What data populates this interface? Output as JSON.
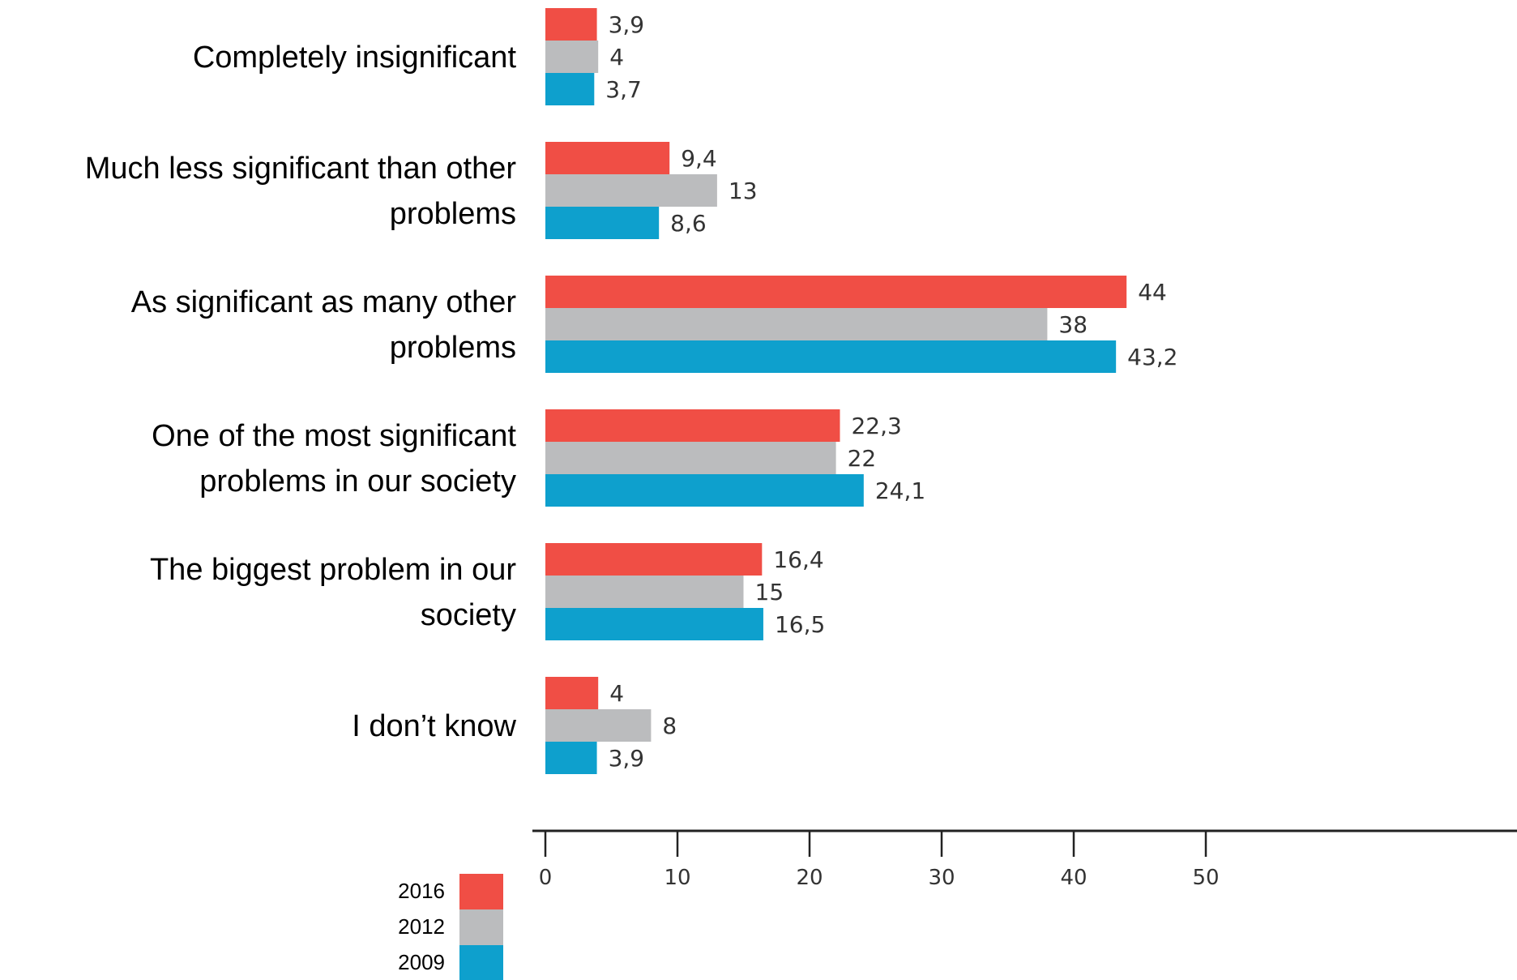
{
  "chart_data": {
    "type": "bar",
    "orientation": "horizontal",
    "categories": [
      [
        "Completely insignificant"
      ],
      [
        "Much less significant than other",
        "problems"
      ],
      [
        "As significant as many other",
        "problems"
      ],
      [
        "One of the most significant",
        "problems in our society"
      ],
      [
        "The biggest problem in our",
        "society"
      ],
      [
        "I don’t know"
      ]
    ],
    "series": [
      {
        "name": "2016",
        "color": "#f04e45",
        "values": [
          3.9,
          9.4,
          44,
          22.3,
          16.4,
          4
        ],
        "labels": [
          "3,9",
          "9,4",
          "44",
          "22,3",
          "16,4",
          "4"
        ]
      },
      {
        "name": "2012",
        "color": "#bbbcbe",
        "values": [
          4,
          13,
          38,
          22,
          15,
          8
        ],
        "labels": [
          "4",
          "13",
          "38",
          "22",
          "15",
          "8"
        ]
      },
      {
        "name": "2009",
        "color": "#0ea0cd",
        "values": [
          3.7,
          8.6,
          43.2,
          24.1,
          16.5,
          3.9
        ],
        "labels": [
          "3,7",
          "8,6",
          "43,2",
          "24,1",
          "16,5",
          "3,9"
        ]
      }
    ],
    "x_ticks": [
      0,
      10,
      20,
      30,
      40,
      50
    ],
    "xlim": [
      0,
      50
    ],
    "grid": false,
    "legend": "bottom-left"
  }
}
